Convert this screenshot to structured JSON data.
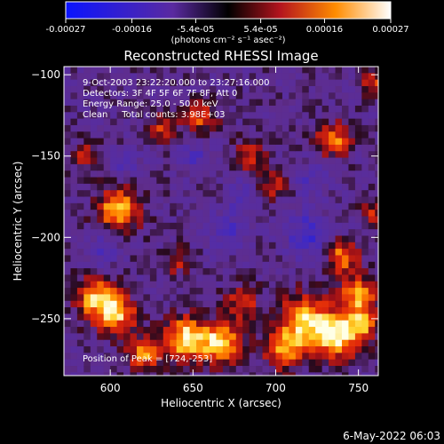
{
  "colorbar": {
    "ticks": [
      {
        "value": -0.00027,
        "label": "-0.00027"
      },
      {
        "value": -0.00016,
        "label": "-0.00016"
      },
      {
        "value": -5.4e-05,
        "label": "-5.4e-05"
      },
      {
        "value": 5.4e-05,
        "label": "5.4e-05"
      },
      {
        "value": 0.00016,
        "label": "0.00016"
      },
      {
        "value": 0.00027,
        "label": "0.00027"
      }
    ],
    "range": [
      -0.00027,
      0.00027
    ],
    "unit_label": "(photons cm⁻² s⁻¹ asec⁻²)"
  },
  "chart_data": {
    "type": "heatmap",
    "title": "Reconstructed RHESSI Image",
    "xlabel": "Heliocentric X (arcsec)",
    "ylabel": "Heliocentric Y (arcsec)",
    "xlim": [
      572,
      762
    ],
    "ylim": [
      -285,
      -95
    ],
    "xticks": [
      {
        "value": 600,
        "label": "600"
      },
      {
        "value": 650,
        "label": "650"
      },
      {
        "value": 700,
        "label": "700"
      },
      {
        "value": 750,
        "label": "750"
      }
    ],
    "yticks": [
      {
        "value": -100,
        "label": "−100"
      },
      {
        "value": -150,
        "label": "−150"
      },
      {
        "value": -200,
        "label": "−200"
      },
      {
        "value": -250,
        "label": "−250"
      }
    ],
    "annotations": [
      "9-Oct-2003 23:22:20.000 to 23:27:16.000",
      "Detectors: 3F 4F 5F 6F 7F 8F, Att 0",
      "Energy Range: 25.0 - 50.0 keV",
      "Clean     Total counts: 3.98E+03",
      "Position of Peak = [724,-253]"
    ],
    "peak": {
      "x": 724,
      "y": -253
    },
    "blobs": [
      {
        "x": 605,
        "y": -183,
        "a": 0.92,
        "s": 9
      },
      {
        "x": 592,
        "y": -238,
        "a": 0.88,
        "s": 9
      },
      {
        "x": 605,
        "y": -248,
        "a": 0.75,
        "s": 8
      },
      {
        "x": 645,
        "y": -262,
        "a": 0.98,
        "s": 9
      },
      {
        "x": 667,
        "y": -265,
        "a": 0.95,
        "s": 9
      },
      {
        "x": 718,
        "y": -252,
        "a": 1.0,
        "s": 11
      },
      {
        "x": 738,
        "y": -262,
        "a": 0.92,
        "s": 9
      },
      {
        "x": 752,
        "y": -253,
        "a": 0.8,
        "s": 7
      },
      {
        "x": 740,
        "y": -212,
        "a": 0.72,
        "s": 7
      },
      {
        "x": 750,
        "y": -235,
        "a": 0.78,
        "s": 8
      },
      {
        "x": 735,
        "y": -140,
        "a": 0.72,
        "s": 7
      },
      {
        "x": 685,
        "y": -150,
        "a": 0.5,
        "s": 7
      },
      {
        "x": 655,
        "y": -127,
        "a": 0.55,
        "s": 7
      },
      {
        "x": 632,
        "y": -133,
        "a": 0.48,
        "s": 6
      },
      {
        "x": 620,
        "y": -272,
        "a": 0.7,
        "s": 7
      },
      {
        "x": 705,
        "y": -270,
        "a": 0.72,
        "s": 8
      },
      {
        "x": 680,
        "y": -240,
        "a": 0.55,
        "s": 7
      },
      {
        "x": 698,
        "y": -168,
        "a": 0.45,
        "s": 6
      },
      {
        "x": 585,
        "y": -150,
        "a": 0.4,
        "s": 6
      },
      {
        "x": 760,
        "y": -105,
        "a": 0.5,
        "s": 6
      },
      {
        "x": 640,
        "y": -215,
        "a": 0.4,
        "s": 6
      },
      {
        "x": 760,
        "y": -185,
        "a": 0.45,
        "s": 6
      },
      {
        "x": 720,
        "y": -198,
        "a": -0.55,
        "s": 9
      },
      {
        "x": 670,
        "y": -197,
        "a": -0.4,
        "s": 8
      },
      {
        "x": 680,
        "y": -175,
        "a": -0.35,
        "s": 7
      },
      {
        "x": 595,
        "y": -208,
        "a": -0.35,
        "s": 7
      },
      {
        "x": 650,
        "y": -150,
        "a": -0.3,
        "s": 7
      },
      {
        "x": 722,
        "y": -165,
        "a": -0.3,
        "s": 7
      },
      {
        "x": 610,
        "y": -155,
        "a": -0.25,
        "s": 6
      }
    ]
  },
  "footer": {
    "date": "6-May-2022 06:03"
  }
}
